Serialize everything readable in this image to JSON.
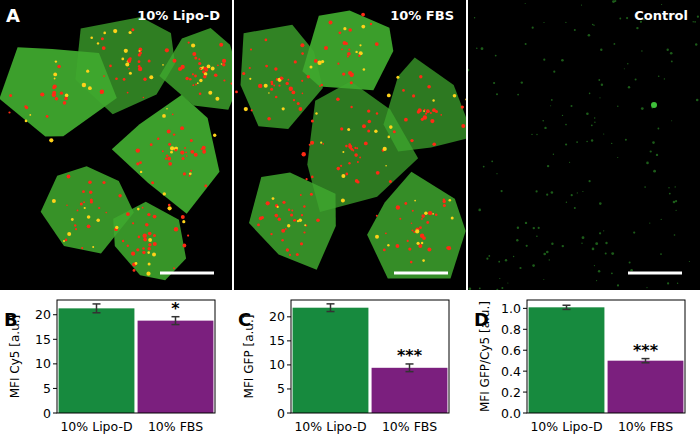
{
  "image_panel": {
    "panel": "A",
    "images": [
      {
        "label": "10% Lipo-D"
      },
      {
        "label": "10% FBS"
      },
      {
        "label": "Control"
      }
    ]
  },
  "chart_data": [
    {
      "type": "bar",
      "panel": "B",
      "y_label": "MFI Cy5 [a.u.]",
      "categories": [
        "10% Lipo-D",
        "10% FBS"
      ],
      "values": [
        21.3,
        18.8
      ],
      "errors": [
        0.9,
        0.8
      ],
      "colors": [
        "#178a3e",
        "#7b1f7e"
      ],
      "significance": [
        null,
        "*"
      ],
      "ylim": [
        0,
        23
      ],
      "yticks": [
        0,
        5,
        10,
        15,
        20
      ]
    },
    {
      "type": "bar",
      "panel": "C",
      "y_label": "MFI GFP [a.u.]",
      "categories": [
        "10% Lipo-D",
        "10% FBS"
      ],
      "values": [
        21.9,
        9.4
      ],
      "errors": [
        0.8,
        0.8
      ],
      "colors": [
        "#178a3e",
        "#7b1f7e"
      ],
      "significance": [
        null,
        "***"
      ],
      "ylim": [
        0,
        23.5
      ],
      "yticks": [
        0,
        5,
        10,
        15,
        20
      ]
    },
    {
      "type": "bar",
      "panel": "D",
      "y_label": "MFI GFP/Cy5 [a.u.]",
      "categories": [
        "10% Lipo-D",
        "10% FBS"
      ],
      "values": [
        1.01,
        0.5
      ],
      "errors": [
        0.02,
        0.02
      ],
      "colors": [
        "#178a3e",
        "#7b1f7e"
      ],
      "significance": [
        null,
        "***"
      ],
      "ylim": [
        0,
        1.08
      ],
      "yticks": [
        {
          "value": 0,
          "label": "0.0"
        },
        0.2,
        0.4,
        0.6,
        0.8,
        {
          "value": 1,
          "label": "1.0"
        }
      ]
    }
  ]
}
